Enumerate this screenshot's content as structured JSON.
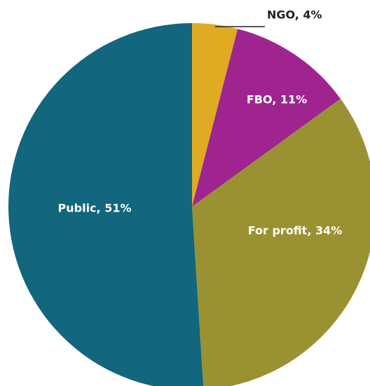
{
  "chart_data": {
    "type": "pie",
    "values": [
      4,
      11,
      34,
      51
    ],
    "value_labels": [
      "NGO, 4%",
      "FBO, 11%",
      "For profit, 34%",
      "Public, 51%"
    ],
    "colors": [
      "#e0aa22",
      "#a0248f",
      "#9a9232",
      "#12667e"
    ]
  }
}
